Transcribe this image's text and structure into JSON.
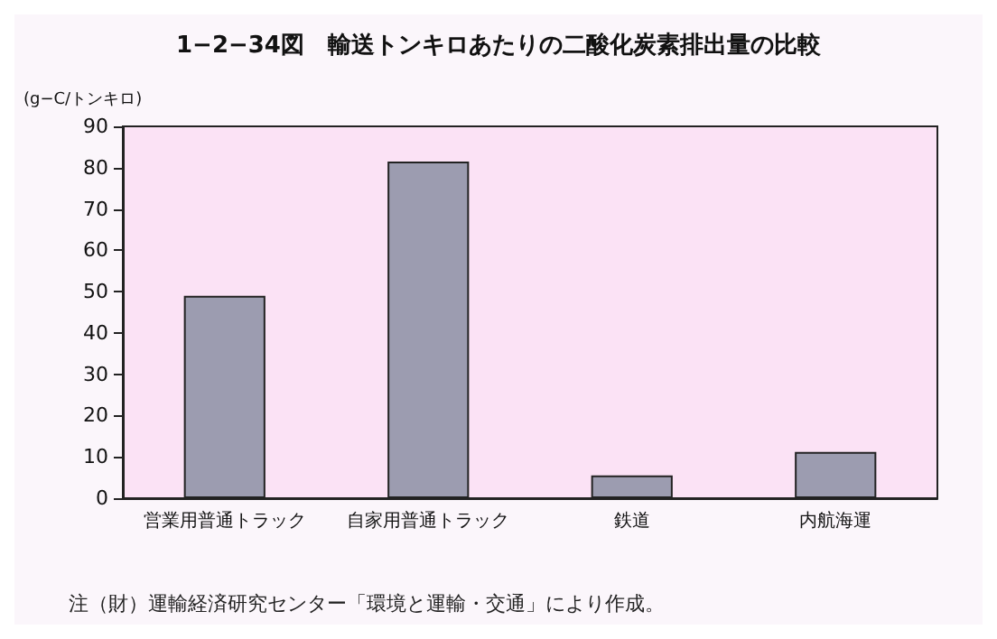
{
  "chart_data": {
    "type": "bar",
    "title": "1−2−34図　輸送トンキロあたりの二酸化炭素排出量の比較",
    "ylabel": "(g−C/トンキロ)",
    "categories": [
      "営業用普通トラック",
      "自家用普通トラック",
      "鉄道",
      "内航海運"
    ],
    "values": [
      49,
      81.5,
      5.5,
      11.2
    ],
    "color": "#9c9cb0",
    "ylim": [
      0,
      90
    ],
    "yticks": [
      0,
      10,
      20,
      30,
      40,
      50,
      60,
      70,
      80,
      90
    ],
    "grid": false,
    "annotations": [
      "注（財）運輸経済研究センター「環境と運輸・交通」により作成。"
    ]
  }
}
